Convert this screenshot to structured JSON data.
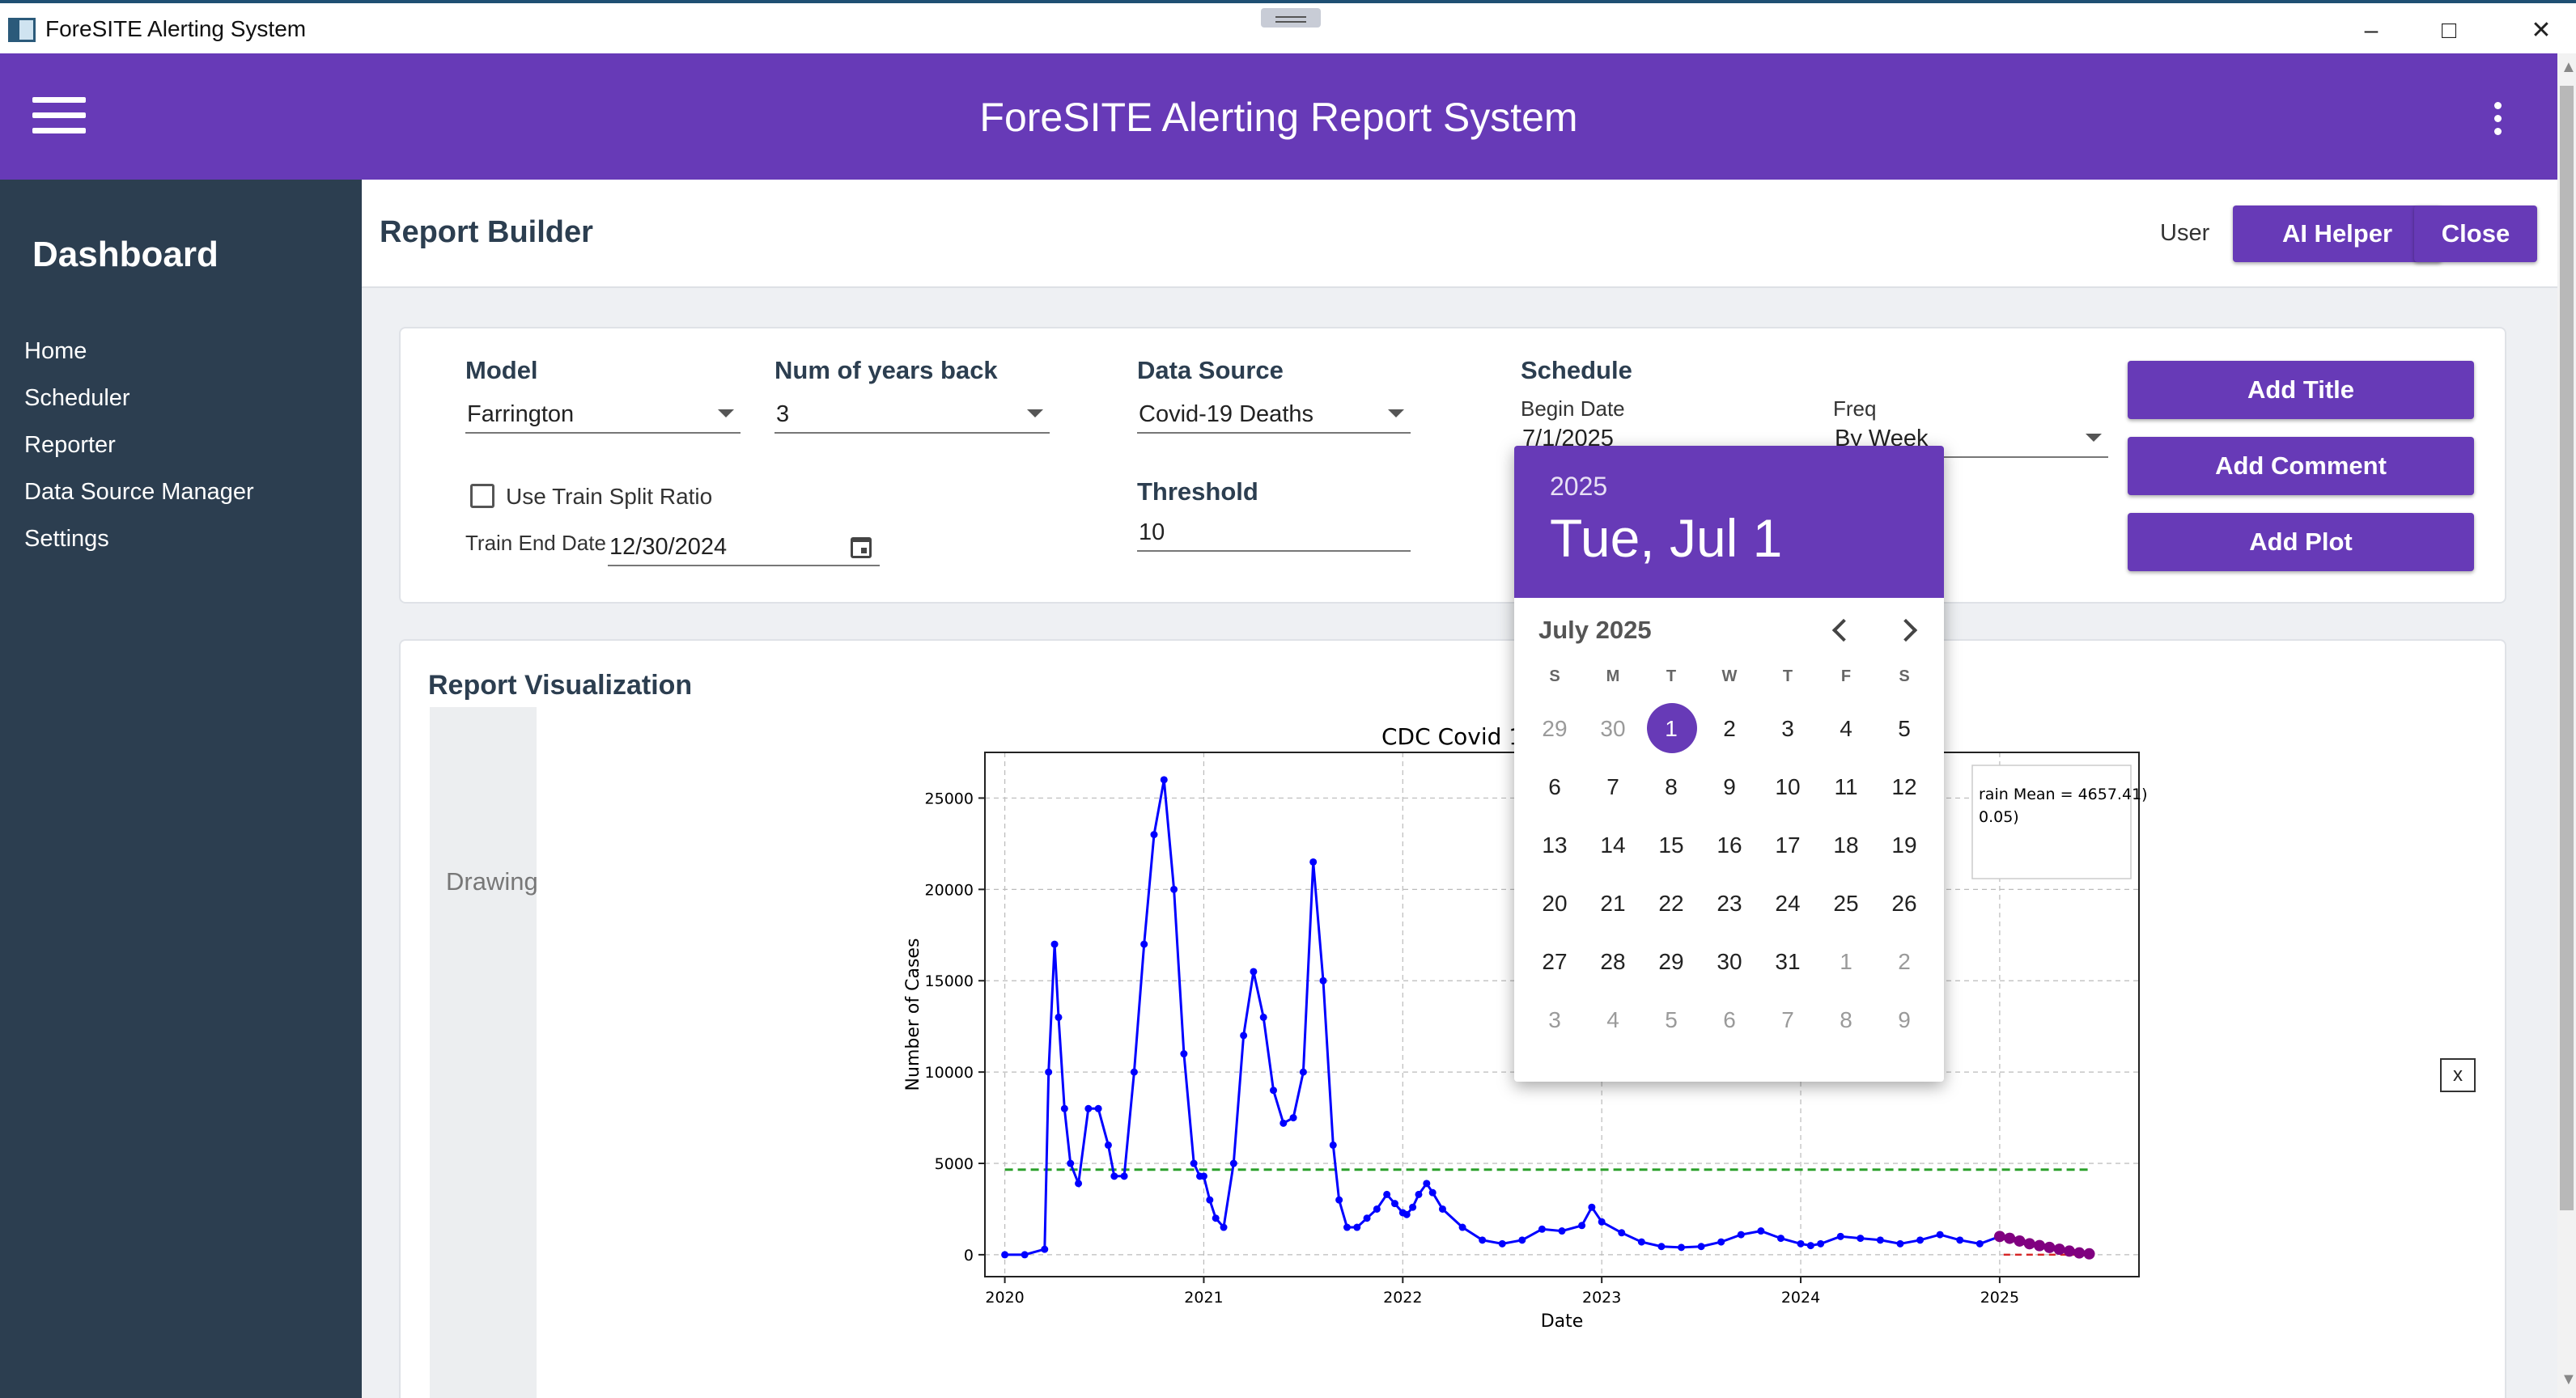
{
  "window": {
    "title": "ForeSITE Alerting System"
  },
  "header": {
    "title": "ForeSITE Alerting Report System"
  },
  "sidebar": {
    "heading": "Dashboard",
    "items": [
      {
        "label": "Home"
      },
      {
        "label": "Scheduler"
      },
      {
        "label": "Reporter"
      },
      {
        "label": "Data Source Manager"
      },
      {
        "label": "Settings"
      }
    ]
  },
  "report_builder": {
    "title": "Report Builder",
    "user_label": "User",
    "ai_helper_label": "AI Helper",
    "close_label": "Close"
  },
  "form": {
    "model": {
      "label": "Model",
      "value": "Farrington"
    },
    "years_back": {
      "label": "Num of years back",
      "value": "3"
    },
    "data_source": {
      "label": "Data Source",
      "value": "Covid-19 Deaths"
    },
    "threshold": {
      "label": "Threshold",
      "value": "10"
    },
    "schedule": {
      "label": "Schedule",
      "begin_date_label": "Begin Date",
      "begin_date_value": "7/1/2025",
      "freq_label": "Freq",
      "freq_value": "By Week"
    },
    "use_train_split": {
      "label": "Use Train Split Ratio",
      "checked": false
    },
    "train_end_date": {
      "label": "Train End Date",
      "value": "12/30/2024"
    },
    "buttons": {
      "add_title": "Add Title",
      "add_comment": "Add Comment",
      "add_plot": "Add Plot"
    }
  },
  "visualization": {
    "title": "Report Visualization",
    "drawing_label": "Drawing",
    "close_x": "x"
  },
  "date_picker": {
    "year": "2025",
    "selected_display": "Tue, Jul 1",
    "month_label": "July 2025",
    "weekdays": [
      "S",
      "M",
      "T",
      "W",
      "T",
      "F",
      "S"
    ],
    "weeks": [
      [
        {
          "d": "29",
          "out": true
        },
        {
          "d": "30",
          "out": true
        },
        {
          "d": "1",
          "sel": true
        },
        {
          "d": "2"
        },
        {
          "d": "3"
        },
        {
          "d": "4"
        },
        {
          "d": "5"
        }
      ],
      [
        {
          "d": "6"
        },
        {
          "d": "7"
        },
        {
          "d": "8"
        },
        {
          "d": "9"
        },
        {
          "d": "10"
        },
        {
          "d": "11"
        },
        {
          "d": "12"
        }
      ],
      [
        {
          "d": "13"
        },
        {
          "d": "14"
        },
        {
          "d": "15"
        },
        {
          "d": "16"
        },
        {
          "d": "17"
        },
        {
          "d": "18"
        },
        {
          "d": "19"
        }
      ],
      [
        {
          "d": "20"
        },
        {
          "d": "21"
        },
        {
          "d": "22"
        },
        {
          "d": "23"
        },
        {
          "d": "24"
        },
        {
          "d": "25"
        },
        {
          "d": "26"
        }
      ],
      [
        {
          "d": "27"
        },
        {
          "d": "28"
        },
        {
          "d": "29"
        },
        {
          "d": "30"
        },
        {
          "d": "31"
        },
        {
          "d": "1",
          "out": true
        },
        {
          "d": "2",
          "out": true
        }
      ],
      [
        {
          "d": "3",
          "out": true
        },
        {
          "d": "4",
          "out": true
        },
        {
          "d": "5",
          "out": true
        },
        {
          "d": "6",
          "out": true
        },
        {
          "d": "7",
          "out": true
        },
        {
          "d": "8",
          "out": true
        },
        {
          "d": "9",
          "out": true
        }
      ]
    ]
  },
  "chart_data": {
    "type": "line",
    "title": "CDC Covid 19 D",
    "xlabel": "Date",
    "ylabel": "Number of Cases",
    "xlim": [
      2019.9,
      2025.7
    ],
    "ylim": [
      -1200,
      27500
    ],
    "x_ticks": [
      "2020",
      "2021",
      "2022",
      "2023",
      "2024",
      "2025"
    ],
    "y_ticks": [
      0,
      5000,
      10000,
      15000,
      20000,
      25000
    ],
    "grid": true,
    "legend_visible_fragments": [
      "rain Mean = 4657.41)",
      "0.05)"
    ],
    "legend_placement": "top-right",
    "threshold_line": {
      "value": 4657.41,
      "color": "#2ca02c",
      "x_start": 2020.0,
      "x_end": 2025.45
    },
    "series": [
      {
        "color": "#0000ff",
        "x": [
          2020.0,
          2020.1,
          2020.2,
          2020.22,
          2020.25,
          2020.27,
          2020.3,
          2020.33,
          2020.37,
          2020.42,
          2020.47,
          2020.52,
          2020.55,
          2020.6,
          2020.65,
          2020.7,
          2020.75,
          2020.8,
          2020.85,
          2020.9,
          2020.95,
          2020.98,
          2021.0,
          2021.03,
          2021.06,
          2021.1,
          2021.15,
          2021.2,
          2021.25,
          2021.3,
          2021.35,
          2021.4,
          2021.45,
          2021.5,
          2021.55,
          2021.6,
          2021.65,
          2021.68,
          2021.72,
          2021.77,
          2021.82,
          2021.87,
          2021.92,
          2021.96,
          2022.0,
          2022.02,
          2022.05,
          2022.08,
          2022.12,
          2022.15,
          2022.2,
          2022.3,
          2022.4,
          2022.5,
          2022.6,
          2022.7,
          2022.8,
          2022.9,
          2022.95,
          2023.0,
          2023.1,
          2023.2,
          2023.3,
          2023.4,
          2023.5,
          2023.6,
          2023.7,
          2023.8,
          2023.9,
          2024.0,
          2024.05,
          2024.1,
          2024.2,
          2024.3,
          2024.4,
          2024.5,
          2024.6,
          2024.7,
          2024.8,
          2024.9,
          2025.0
        ],
        "y": [
          0,
          0,
          300,
          10000,
          17000,
          13000,
          8000,
          5000,
          3900,
          8000,
          8000,
          6000,
          4300,
          4300,
          10000,
          17000,
          23000,
          26000,
          20000,
          11000,
          5000,
          4300,
          4300,
          3000,
          2000,
          1500,
          5000,
          12000,
          15500,
          13000,
          9000,
          7200,
          7500,
          10000,
          21500,
          15000,
          6000,
          3000,
          1500,
          1500,
          2000,
          2500,
          3300,
          2800,
          2300,
          2200,
          2600,
          3300,
          3900,
          3400,
          2500,
          1500,
          800,
          600,
          800,
          1400,
          1300,
          1600,
          2600,
          1800,
          1200,
          700,
          450,
          400,
          450,
          700,
          1100,
          1300,
          900,
          600,
          500,
          600,
          1000,
          900,
          800,
          600,
          800,
          1100,
          800,
          600,
          1000
        ]
      },
      {
        "color": "#800080",
        "x": [
          2025.0,
          2025.05,
          2025.1,
          2025.15,
          2025.2,
          2025.25,
          2025.3,
          2025.35,
          2025.4,
          2025.45
        ],
        "y": [
          1000,
          900,
          750,
          600,
          500,
          400,
          300,
          200,
          100,
          50
        ]
      }
    ]
  }
}
